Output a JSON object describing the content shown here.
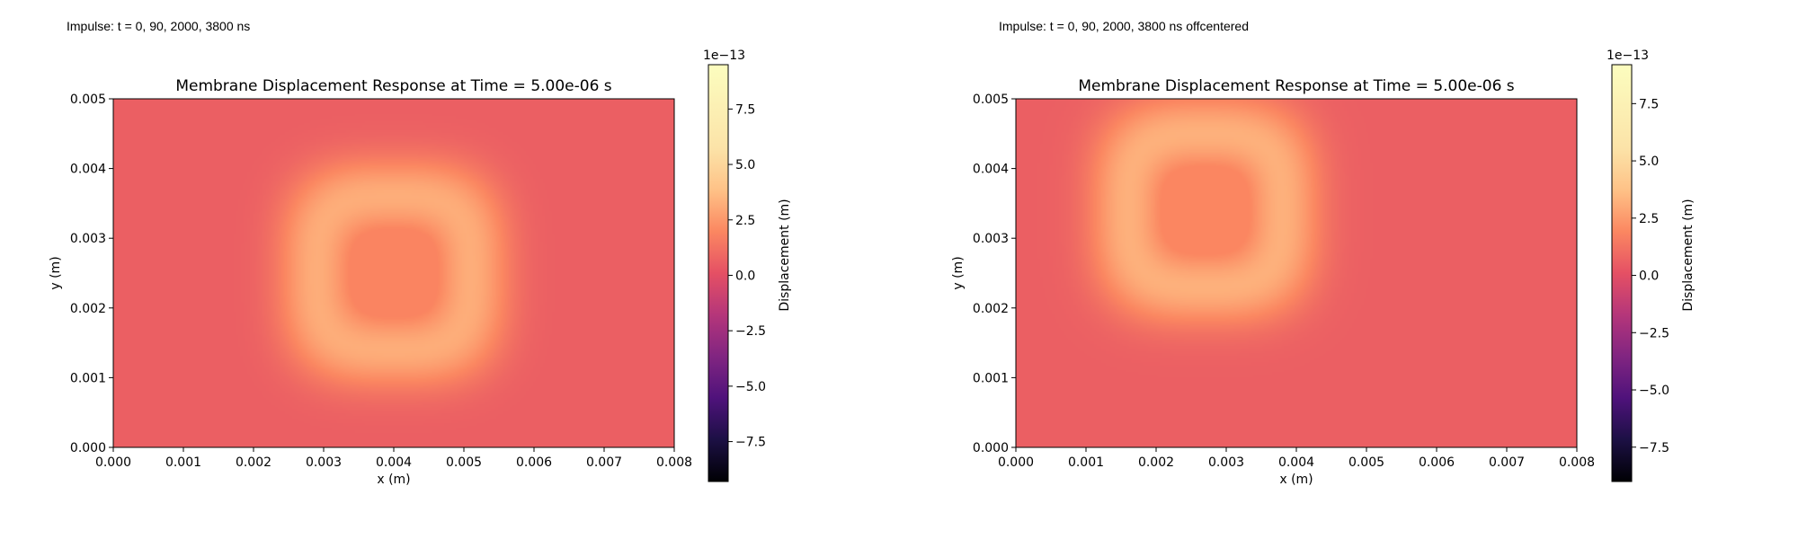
{
  "figures": [
    {
      "caption": "Impulse: t = 0, 90, 2000, 3800 ns",
      "chart_data": {
        "type": "heatmap",
        "title": "Membrane Displacement Response at Time = 5.00e-06 s",
        "xlabel": "x (m)",
        "ylabel": "y (m)",
        "xlim": [
          0,
          0.008
        ],
        "ylim": [
          0,
          0.005
        ],
        "x_ticks": [
          "0.000",
          "0.001",
          "0.002",
          "0.003",
          "0.004",
          "0.005",
          "0.006",
          "0.007",
          "0.008"
        ],
        "y_ticks": [
          "0.000",
          "0.001",
          "0.002",
          "0.003",
          "0.004",
          "0.005"
        ],
        "colormap": "magma",
        "colorbar": {
          "label": "Displacement (m)",
          "range": [
            -9.3e-14,
            9.5e-14
          ],
          "ticks": [
            "−7.5",
            "−5.0",
            "−2.5",
            "0.0",
            "2.5",
            "5.0",
            "7.5"
          ],
          "tick_values": [
            -7.5,
            -5.0,
            -2.5,
            0.0,
            2.5,
            5.0,
            7.5
          ],
          "offset_text": "1e−13",
          "scale_min": -9.3,
          "scale_max": 9.5
        },
        "field": {
          "background_value": 0.6,
          "ring_peak_value": 3.2,
          "ring_center": [
            0.004,
            0.0025
          ],
          "ring_radii": [
            0.0011,
            0.0011
          ],
          "ring_width": 0.0004,
          "halo_radius": 0.0018
        }
      }
    },
    {
      "caption": "Impulse: t = 0, 90, 2000, 3800 ns offcentered",
      "chart_data": {
        "type": "heatmap",
        "title": "Membrane Displacement Response at Time = 5.00e-06 s",
        "xlabel": "x (m)",
        "ylabel": "y (m)",
        "xlim": [
          0,
          0.008
        ],
        "ylim": [
          0,
          0.005
        ],
        "x_ticks": [
          "0.000",
          "0.001",
          "0.002",
          "0.003",
          "0.004",
          "0.005",
          "0.006",
          "0.007",
          "0.008"
        ],
        "y_ticks": [
          "0.000",
          "0.001",
          "0.002",
          "0.003",
          "0.004",
          "0.005"
        ],
        "colormap": "magma",
        "colorbar": {
          "label": "Displacement (m)",
          "range": [
            -9e-14,
            9.2e-14
          ],
          "ticks": [
            "−7.5",
            "−5.0",
            "−2.5",
            "0.0",
            "2.5",
            "5.0",
            "7.5"
          ],
          "tick_values": [
            -7.5,
            -5.0,
            -2.5,
            0.0,
            2.5,
            5.0,
            7.5
          ],
          "offset_text": "1e−13",
          "scale_min": -9.0,
          "scale_max": 9.2
        },
        "field": {
          "background_value": 0.6,
          "ring_peak_value": 3.2,
          "ring_center": [
            0.0027,
            0.0034
          ],
          "ring_radii": [
            0.0011,
            0.0011
          ],
          "ring_width": 0.0004,
          "halo_radius": 0.0018
        }
      }
    }
  ]
}
